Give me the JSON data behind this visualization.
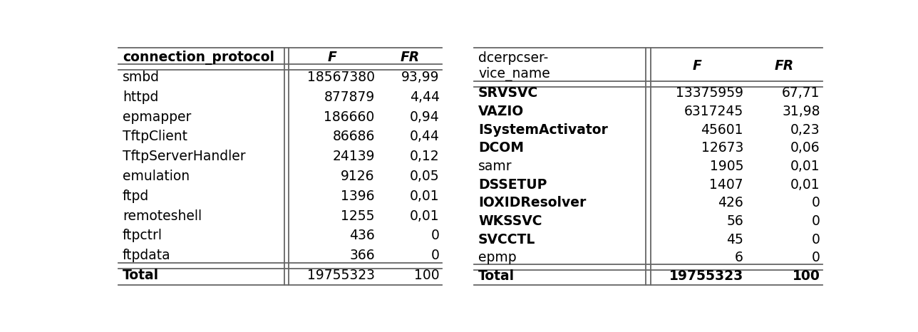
{
  "table1": {
    "header_col0": "connection_protocol",
    "header_col1": "F",
    "header_col2": "FR",
    "rows": [
      [
        "smbd",
        "18567380",
        "93,99"
      ],
      [
        "httpd",
        "877879",
        "4,44"
      ],
      [
        "epmapper",
        "186660",
        "0,94"
      ],
      [
        "TftpClient",
        "86686",
        "0,44"
      ],
      [
        "TftpServerHandler",
        "24139",
        "0,12"
      ],
      [
        "emulation",
        "9126",
        "0,05"
      ],
      [
        "ftpd",
        "1396",
        "0,01"
      ],
      [
        "remoteshell",
        "1255",
        "0,01"
      ],
      [
        "ftpctrl",
        "436",
        "0"
      ],
      [
        "ftpdata",
        "366",
        "0"
      ]
    ],
    "total": [
      "Total",
      "19755323",
      "100"
    ],
    "row_bold": [
      false,
      false,
      false,
      false,
      false,
      false,
      false,
      false,
      false,
      false
    ],
    "total_bold": false,
    "header_bold": true
  },
  "table2": {
    "header_col0_line1": "dcerpcser-",
    "header_col0_line2": "vice_name",
    "header_col1": "F",
    "header_col2": "FR",
    "rows": [
      [
        "SRVSVC",
        "13375959",
        "67,71"
      ],
      [
        "VAZIO",
        "6317245",
        "31,98"
      ],
      [
        "ISystemActivator",
        "45601",
        "0,23"
      ],
      [
        "DCOM",
        "12673",
        "0,06"
      ],
      [
        "samr",
        "1905",
        "0,01"
      ],
      [
        "DSSETUP",
        "1407",
        "0,01"
      ],
      [
        "IOXIDResolver",
        "426",
        "0"
      ],
      [
        "WKSSVC",
        "56",
        "0"
      ],
      [
        "SVCCTL",
        "45",
        "0"
      ],
      [
        "epmp",
        "6",
        "0"
      ]
    ],
    "total": [
      "Total",
      "19755323",
      "100"
    ],
    "row_bold": [
      true,
      true,
      true,
      true,
      false,
      true,
      true,
      true,
      true,
      false
    ],
    "total_bold": true,
    "header_bold": false
  },
  "bg_color": "#ffffff",
  "text_color": "#000000",
  "line_color": "#666666",
  "fontsize": 13.5
}
